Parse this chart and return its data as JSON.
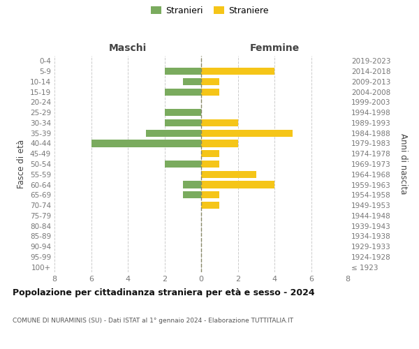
{
  "age_groups": [
    "100+",
    "95-99",
    "90-94",
    "85-89",
    "80-84",
    "75-79",
    "70-74",
    "65-69",
    "60-64",
    "55-59",
    "50-54",
    "45-49",
    "40-44",
    "35-39",
    "30-34",
    "25-29",
    "20-24",
    "15-19",
    "10-14",
    "5-9",
    "0-4"
  ],
  "birth_years": [
    "≤ 1923",
    "1924-1928",
    "1929-1933",
    "1934-1938",
    "1939-1943",
    "1944-1948",
    "1949-1953",
    "1954-1958",
    "1959-1963",
    "1964-1968",
    "1969-1973",
    "1974-1978",
    "1979-1983",
    "1984-1988",
    "1989-1993",
    "1994-1998",
    "1999-2003",
    "2004-2008",
    "2009-2013",
    "2014-2018",
    "2019-2023"
  ],
  "maschi": [
    0,
    0,
    0,
    0,
    0,
    0,
    0,
    1,
    1,
    0,
    2,
    0,
    6,
    3,
    2,
    2,
    0,
    2,
    1,
    2,
    0
  ],
  "femmine": [
    0,
    0,
    0,
    0,
    0,
    0,
    1,
    1,
    4,
    3,
    1,
    1,
    2,
    5,
    2,
    0,
    0,
    1,
    1,
    4,
    0
  ],
  "maschi_color": "#7aab5e",
  "femmine_color": "#f5c518",
  "title": "Popolazione per cittadinanza straniera per età e sesso - 2024",
  "subtitle": "COMUNE DI NURAMINIS (SU) - Dati ISTAT al 1° gennaio 2024 - Elaborazione TUTTITALIA.IT",
  "ylabel_left": "Fasce di età",
  "ylabel_right": "Anni di nascita",
  "xlabel_maschi": "Maschi",
  "xlabel_femmine": "Femmine",
  "legend_stranieri": "Stranieri",
  "legend_straniere": "Straniere",
  "xlim": 8,
  "background_color": "#ffffff",
  "grid_color": "#cccccc"
}
